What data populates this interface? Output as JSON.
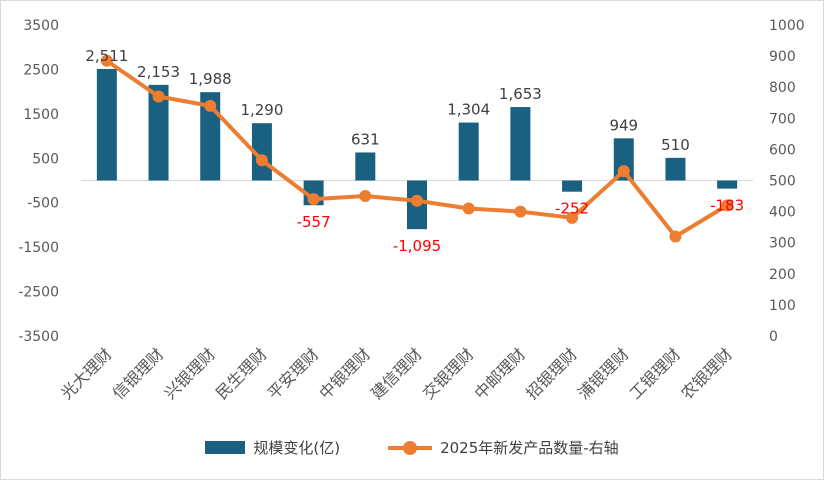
{
  "chart_data": {
    "type": "bar",
    "categories": [
      "光大理财",
      "信银理财",
      "兴银理财",
      "民生理财",
      "平安理财",
      "中银理财",
      "建信理财",
      "交银理财",
      "中邮理财",
      "招银理财",
      "浦银理财",
      "工银理财",
      "农银理财"
    ],
    "series": [
      {
        "name": "规模变化(亿)",
        "type": "bar",
        "axis": "left",
        "values": [
          2511,
          2153,
          1988,
          1290,
          -557,
          631,
          -1095,
          1304,
          1653,
          -252,
          949,
          510,
          -183
        ],
        "labels": [
          "2,511",
          "2,153",
          "1,988",
          "1,290",
          "-557",
          "631",
          "-1,095",
          "1,304",
          "1,653",
          "-252",
          "949",
          "510",
          "-183"
        ]
      },
      {
        "name": "2025年新发产品数量-右轴",
        "type": "line",
        "axis": "right",
        "values": [
          885,
          770,
          740,
          565,
          440,
          450,
          435,
          410,
          400,
          380,
          530,
          320,
          420
        ]
      }
    ],
    "y_left": {
      "ylim": [
        -3500,
        3500
      ],
      "ticks": [
        "3500",
        "2500",
        "1500",
        "500",
        "-500",
        "-1500",
        "-2500",
        "-3500"
      ]
    },
    "y_right": {
      "ylim": [
        0,
        1000
      ],
      "ticks": [
        "1000",
        "900",
        "800",
        "700",
        "600",
        "500",
        "400",
        "300",
        "200",
        "100",
        "0"
      ]
    },
    "colors": {
      "bar": "#1a6080",
      "line": "#ed7d31",
      "negative_label": "#ff0000",
      "label": "#404040",
      "axis_text": "#595959"
    },
    "legend_position": "bottom",
    "grid": false
  },
  "legend": {
    "bar_label": "规模变化(亿)",
    "line_label": "2025年新发产品数量-右轴"
  }
}
